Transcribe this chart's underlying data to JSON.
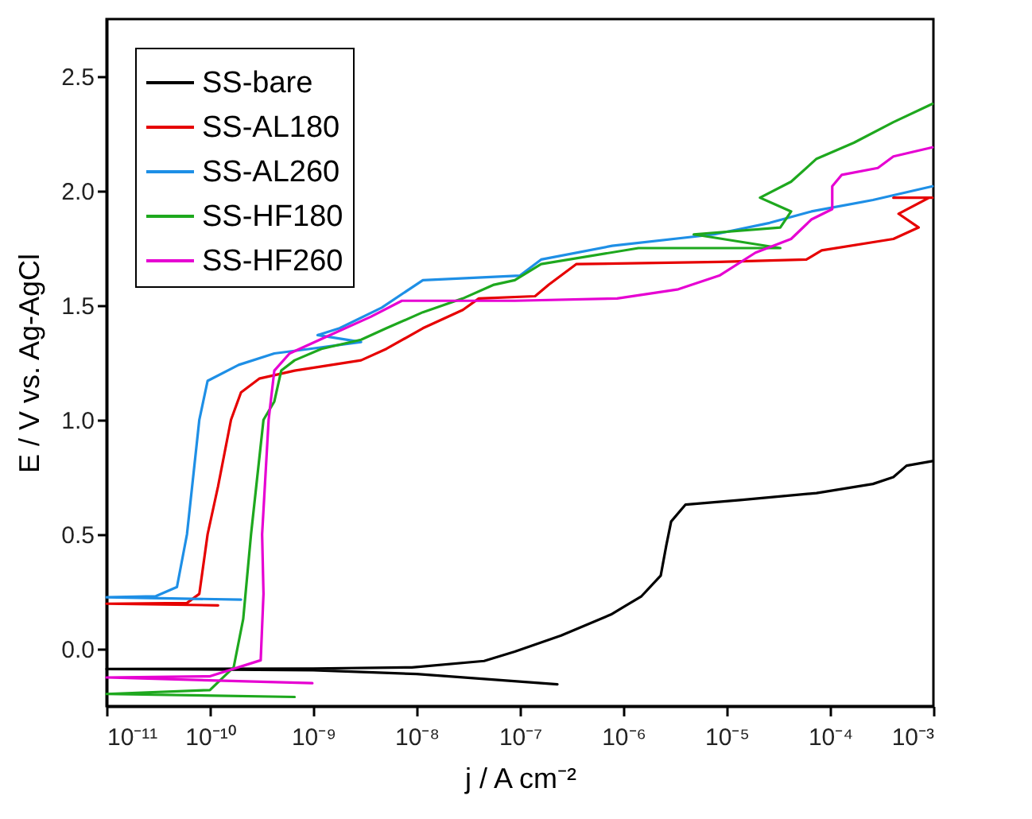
{
  "chart_data": {
    "type": "line",
    "xlabel": "j / A cm⁻²",
    "ylabel": "E / V vs. Ag-AgCl",
    "log": "x",
    "xlim": [
      1e-11,
      0.001
    ],
    "ylim": [
      -0.25,
      2.75
    ],
    "xticks": [
      {
        "value": 1e-11,
        "label": "10⁻¹¹"
      },
      {
        "value": 1e-10,
        "label": "10⁻¹⁰"
      },
      {
        "value": 1e-09,
        "label": "10⁻⁹"
      },
      {
        "value": 1e-08,
        "label": "10⁻⁸"
      },
      {
        "value": 1e-07,
        "label": "10⁻⁷"
      },
      {
        "value": 1e-06,
        "label": "10⁻⁶"
      },
      {
        "value": 1e-05,
        "label": "10⁻⁵"
      },
      {
        "value": 0.0001,
        "label": "10⁻⁴"
      },
      {
        "value": 0.001,
        "label": "10⁻³"
      }
    ],
    "yticks": [
      {
        "value": 0,
        "label": "0.0"
      },
      {
        "value": 0.5,
        "label": "0.5"
      },
      {
        "value": 1,
        "label": "1.0"
      },
      {
        "value": 1.5,
        "label": "1.5"
      },
      {
        "value": 2,
        "label": "2.0"
      },
      {
        "value": 2.5,
        "label": "2.5"
      }
    ],
    "grid": false,
    "legend": "top left",
    "marker": "none",
    "line_style": "solid",
    "series": [
      {
        "name": "SS-bare",
        "color": "#000000",
        "x": [
          2.3e-07,
          1e-08,
          1e-09,
          1e-11,
          1e-09,
          9e-09,
          4.5e-08,
          8.9e-08,
          2.5e-07,
          7.6e-07,
          1.5e-06,
          2.3e-06,
          2.6e-06,
          2.9e-06,
          4e-06,
          1.35e-05,
          7.4e-05,
          0.00026,
          0.00041,
          0.00055,
          0.00098
        ],
        "values": [
          -0.155,
          -0.11,
          -0.093,
          -0.088,
          -0.086,
          -0.081,
          -0.053,
          -0.012,
          0.058,
          0.15,
          0.23,
          0.32,
          0.45,
          0.556,
          0.63,
          0.65,
          0.68,
          0.72,
          0.75,
          0.8,
          0.82
        ]
      },
      {
        "name": "SS-AL180",
        "color": "#e60000",
        "x": [
          1.2e-10,
          1e-11,
          6e-11,
          7.9e-11,
          9.5e-11,
          1.2e-10,
          1.6e-10,
          2e-10,
          3e-10,
          6.6e-10,
          2.9e-09,
          5.1e-09,
          1.15e-08,
          2.8e-08,
          4e-08,
          1.4e-07,
          1.9e-07,
          3.5e-07,
          8.5e-06,
          5.9e-05,
          8.3e-05,
          0.00041,
          0.00072,
          0.00046,
          0.00091,
          0.00041,
          0.00098
        ],
        "values": [
          0.19,
          0.197,
          0.2,
          0.24,
          0.5,
          0.71,
          1.0,
          1.12,
          1.18,
          1.215,
          1.26,
          1.31,
          1.4,
          1.48,
          1.53,
          1.54,
          1.59,
          1.68,
          1.69,
          1.7,
          1.74,
          1.79,
          1.84,
          1.9,
          1.97,
          1.97,
          1.97
        ]
      },
      {
        "name": "SS-AL260",
        "color": "#1e8fe6",
        "x": [
          2e-10,
          1e-11,
          3e-11,
          4.8e-11,
          6e-11,
          7.9e-11,
          9.5e-11,
          1.9e-10,
          4.2e-10,
          9.3e-10,
          2.9e-09,
          1.1e-09,
          1.8e-09,
          4.6e-09,
          1.15e-08,
          1e-07,
          1.6e-07,
          7.8e-07,
          7.6e-06,
          2.6e-05,
          6.6e-05,
          0.00026,
          0.00098
        ],
        "values": [
          0.215,
          0.225,
          0.23,
          0.27,
          0.5,
          1.0,
          1.17,
          1.24,
          1.29,
          1.31,
          1.34,
          1.37,
          1.4,
          1.49,
          1.61,
          1.63,
          1.7,
          1.76,
          1.81,
          1.86,
          1.91,
          1.96,
          2.02
        ]
      },
      {
        "name": "SS-HF180",
        "color": "#1ea81e",
        "x": [
          6.6e-10,
          1e-11,
          1e-10,
          1.7e-10,
          2.1e-10,
          2.5e-10,
          3.3e-10,
          4.2e-10,
          4.9e-10,
          6.6e-10,
          1.2e-09,
          2.9e-09,
          5.1e-09,
          1.15e-08,
          2.8e-08,
          5.6e-08,
          8.9e-08,
          1.6e-07,
          1.4e-06,
          3.3e-05,
          4.8e-06,
          3.3e-05,
          4.2e-05,
          2.1e-05,
          4.2e-05,
          7.4e-05,
          0.00017,
          0.00041,
          0.00098
        ],
        "values": [
          -0.21,
          -0.197,
          -0.18,
          -0.08,
          0.13,
          0.5,
          1.0,
          1.08,
          1.215,
          1.26,
          1.31,
          1.35,
          1.4,
          1.47,
          1.53,
          1.59,
          1.61,
          1.68,
          1.75,
          1.75,
          1.81,
          1.84,
          1.91,
          1.97,
          2.04,
          2.14,
          2.21,
          2.3,
          2.38
        ]
      },
      {
        "name": "SS-HF260",
        "color": "#e600d2",
        "x": [
          9.8e-10,
          1e-11,
          1e-10,
          3.1e-10,
          3.3e-10,
          3.2e-10,
          3.7e-10,
          4.2e-10,
          5.9e-10,
          1.3e-09,
          3.6e-09,
          7.2e-09,
          8.9e-08,
          8.7e-07,
          3.4e-06,
          8.5e-06,
          1.9e-05,
          4.2e-05,
          6.6e-05,
          0.000105,
          0.000105,
          0.00013,
          0.00029,
          0.00041,
          0.00098
        ],
        "values": [
          -0.15,
          -0.125,
          -0.12,
          -0.05,
          0.24,
          0.5,
          1.0,
          1.215,
          1.29,
          1.36,
          1.45,
          1.52,
          1.52,
          1.53,
          1.57,
          1.63,
          1.73,
          1.79,
          1.875,
          1.92,
          2.02,
          2.07,
          2.1,
          2.15,
          2.19
        ]
      }
    ]
  }
}
